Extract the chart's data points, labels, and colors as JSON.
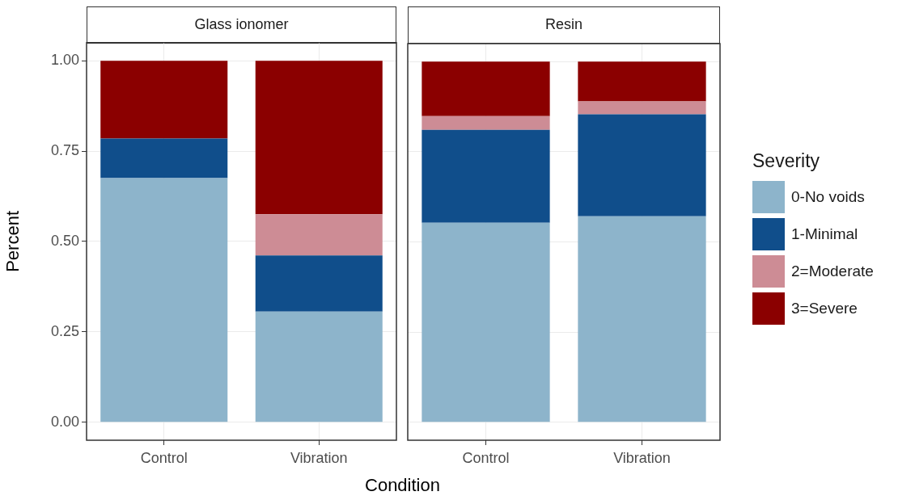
{
  "chart_data": [
    {
      "type": "bar",
      "title": "Glass ionomer",
      "xlabel": "Condition",
      "ylabel": "Percent",
      "categories": [
        "Control",
        "Vibration"
      ],
      "stacked": true,
      "grid": true,
      "legend": "right",
      "legend_title": "Severity",
      "ylim": [
        -0.05,
        1.05
      ],
      "yticks": [
        {
          "value": 0,
          "label": "0.00"
        },
        {
          "value": 0.25,
          "label": "0.25"
        },
        {
          "value": 0.5,
          "label": "0.50"
        },
        {
          "value": 0.75,
          "label": "0.75"
        },
        {
          "value": 1,
          "label": "1.00"
        }
      ],
      "series": [
        {
          "name": "0-No voids",
          "color": "#8db4cb",
          "values": [
            0.675,
            0.306
          ]
        },
        {
          "name": "1-Minimal",
          "color": "#104e8b",
          "values": [
            0.11,
            0.155
          ]
        },
        {
          "name": "2=Moderate",
          "color": "#cd8c95",
          "values": [
            0,
            0.114
          ]
        },
        {
          "name": "3=Severe",
          "color": "#8b0000",
          "values": [
            0.215,
            0.425
          ]
        }
      ]
    },
    {
      "type": "bar",
      "title": "Resin",
      "categories": [
        "Control",
        "Vibration"
      ],
      "stacked": true,
      "grid": true,
      "tick_labels": "x",
      "ylim": [
        -0.05,
        1.05
      ],
      "yticks": [
        {
          "value": 0,
          "label": null
        },
        {
          "value": 0.25,
          "label": null
        },
        {
          "value": 0.5,
          "label": null
        },
        {
          "value": 0.75,
          "label": null
        },
        {
          "value": 1,
          "label": null
        }
      ],
      "series": [
        {
          "color": "#8db4cb",
          "values": [
            0.553,
            0.571
          ]
        },
        {
          "color": "#104e8b",
          "values": [
            0.258,
            0.283
          ]
        },
        {
          "color": "#cd8c95",
          "values": [
            0.038,
            0.036
          ]
        },
        {
          "color": "#8b0000",
          "values": [
            0.151,
            0.11
          ]
        }
      ]
    }
  ]
}
